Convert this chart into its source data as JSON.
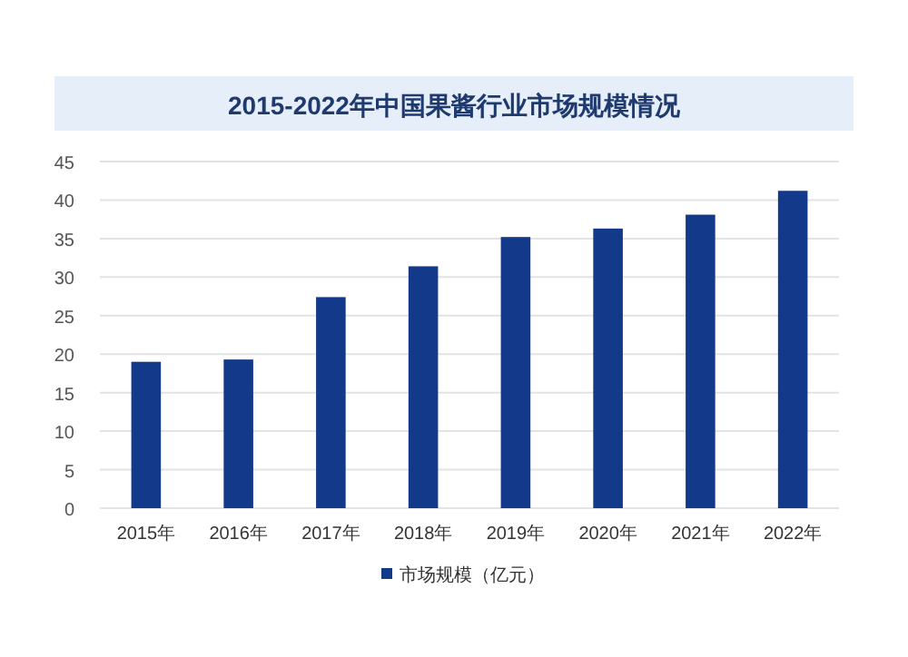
{
  "chart_data": {
    "type": "bar",
    "title": "2015-2022年中国果酱行业市场规模情况",
    "categories": [
      "2015年",
      "2016年",
      "2017年",
      "2018年",
      "2019年",
      "2020年",
      "2021年",
      "2022年"
    ],
    "series": [
      {
        "name": "市场规模（亿元）",
        "color": "#12398a",
        "values": [
          19.0,
          19.3,
          27.4,
          31.4,
          35.2,
          36.3,
          38.1,
          41.2
        ]
      }
    ],
    "ylim": [
      0,
      45
    ],
    "yticks": [
      0,
      5,
      10,
      15,
      20,
      25,
      30,
      35,
      40,
      45
    ],
    "grid": "y",
    "legend": "bottom"
  }
}
